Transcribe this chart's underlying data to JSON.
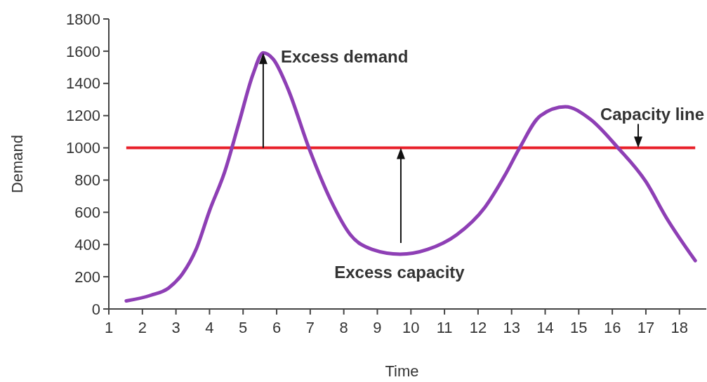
{
  "chart_data": {
    "type": "line",
    "xlabel": "Time",
    "ylabel": "Demand",
    "x": [
      1.52,
      2.25,
      2.78,
      3.2,
      3.6,
      4.0,
      4.45,
      4.87,
      5.3,
      5.6,
      5.9,
      6.33,
      6.96,
      7.6,
      8.2,
      8.84,
      9.68,
      10.5,
      11.36,
      12.2,
      12.8,
      13.24,
      13.86,
      14.6,
      15.33,
      16.17,
      17.0,
      17.6,
      18.47
    ],
    "series": [
      {
        "color": "#8e3fb5",
        "values": [
          50,
          85,
          130,
          220,
          370,
          610,
          850,
          1150,
          1460,
          1590,
          1550,
          1370,
          1000,
          680,
          460,
          370,
          340,
          370,
          460,
          630,
          830,
          1000,
          1200,
          1255,
          1180,
          1000,
          790,
          570,
          300
        ]
      }
    ],
    "xlim": [
      1,
      18.8
    ],
    "xticks": [
      1,
      2,
      3,
      4,
      5,
      6,
      7,
      8,
      9,
      10,
      11,
      12,
      13,
      14,
      15,
      16,
      17,
      18
    ],
    "ylim": [
      0,
      1800
    ],
    "yticks": [
      0,
      200,
      400,
      600,
      800,
      1000,
      1200,
      1400,
      1600,
      1800
    ],
    "ref_lines": [
      {
        "axis": "y",
        "value": 1000,
        "color": "#e8202a",
        "label": "Capacity line"
      }
    ],
    "annotations": [
      {
        "text": "Excess demand",
        "x": 5.6,
        "y": 1590
      },
      {
        "text": "Excess capacity",
        "x": 9.7,
        "y": 340
      }
    ],
    "grid": false
  }
}
